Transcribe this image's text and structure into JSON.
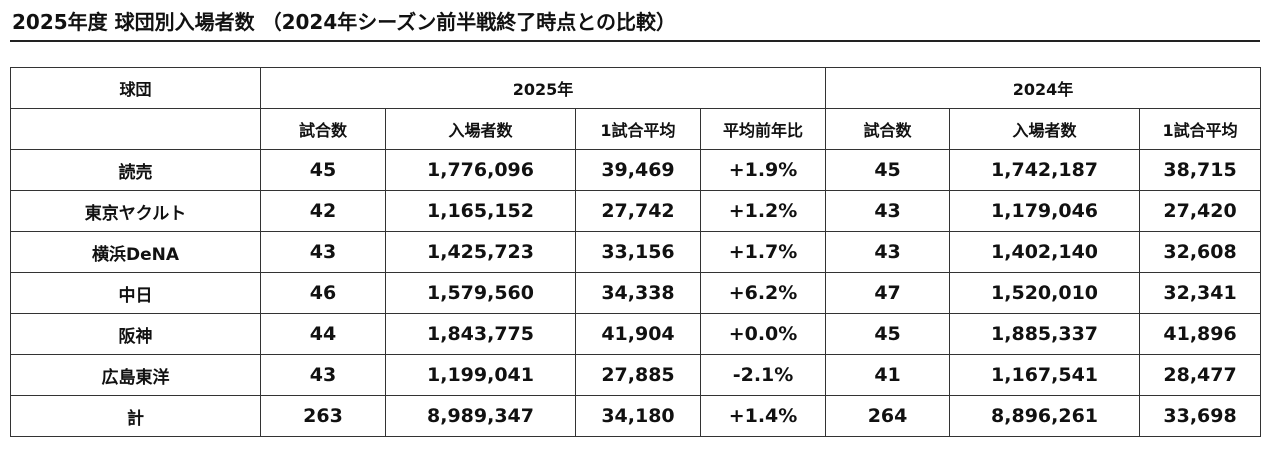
{
  "title": "2025年度 球団別入場者数 （2024年シーズン前半戦終了時点との比較）",
  "header": {
    "team": "球団",
    "year_2025": "2025年",
    "year_2024": "2024年",
    "sub_2025": [
      "試合数",
      "入場者数",
      "1試合平均",
      "平均前年比"
    ],
    "sub_2024": [
      "試合数",
      "入場者数",
      "1試合平均"
    ]
  },
  "rows": [
    {
      "team": "読売",
      "games_2025": "45",
      "attendance_2025": "1,776,096",
      "avg_2025": "39,469",
      "yoy": "+1.9%",
      "games_2024": "45",
      "attendance_2024": "1,742,187",
      "avg_2024": "38,715"
    },
    {
      "team": "東京ヤクルト",
      "games_2025": "42",
      "attendance_2025": "1,165,152",
      "avg_2025": "27,742",
      "yoy": "+1.2%",
      "games_2024": "43",
      "attendance_2024": "1,179,046",
      "avg_2024": "27,420"
    },
    {
      "team": "横浜DeNA",
      "games_2025": "43",
      "attendance_2025": "1,425,723",
      "avg_2025": "33,156",
      "yoy": "+1.7%",
      "games_2024": "43",
      "attendance_2024": "1,402,140",
      "avg_2024": "32,608"
    },
    {
      "team": "中日",
      "games_2025": "46",
      "attendance_2025": "1,579,560",
      "avg_2025": "34,338",
      "yoy": "+6.2%",
      "games_2024": "47",
      "attendance_2024": "1,520,010",
      "avg_2024": "32,341"
    },
    {
      "team": "阪神",
      "games_2025": "44",
      "attendance_2025": "1,843,775",
      "avg_2025": "41,904",
      "yoy": "+0.0%",
      "games_2024": "45",
      "attendance_2024": "1,885,337",
      "avg_2024": "41,896"
    },
    {
      "team": "広島東洋",
      "games_2025": "43",
      "attendance_2025": "1,199,041",
      "avg_2025": "27,885",
      "yoy": "-2.1%",
      "games_2024": "41",
      "attendance_2024": "1,167,541",
      "avg_2024": "28,477"
    }
  ],
  "total": {
    "team": "計",
    "games_2025": "263",
    "attendance_2025": "8,989,347",
    "avg_2025": "34,180",
    "yoy": "+1.4%",
    "games_2024": "264",
    "attendance_2024": "8,896,261",
    "avg_2024": "33,698"
  }
}
